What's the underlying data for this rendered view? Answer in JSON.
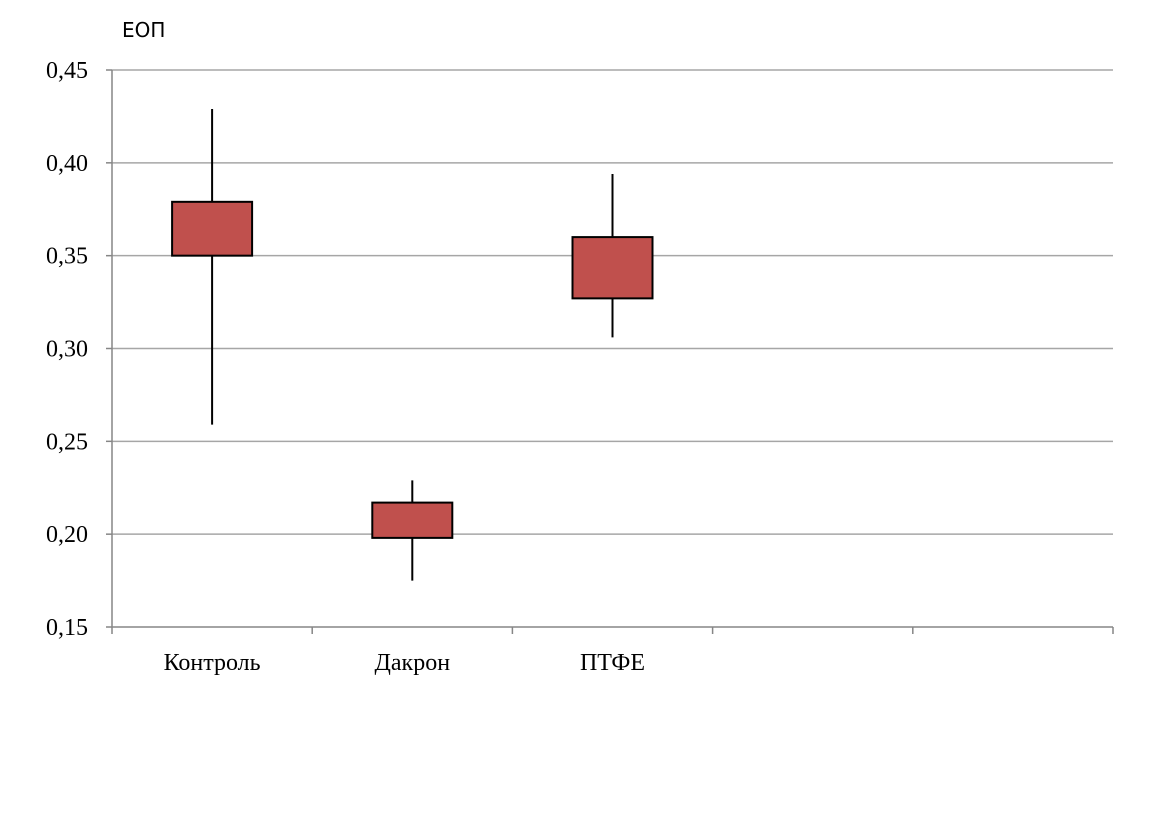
{
  "chart_data": {
    "type": "candlestick",
    "ylabel": "ЕОП",
    "xlabel": "",
    "ylim": [
      0.15,
      0.45
    ],
    "yticks": [
      "0,15",
      "0,20",
      "0,25",
      "0,30",
      "0,35",
      "0,40",
      "0,45"
    ],
    "ytick_values": [
      0.15,
      0.2,
      0.25,
      0.3,
      0.35,
      0.4,
      0.45
    ],
    "grid": true,
    "categories": [
      "Контроль",
      "Дакрон",
      "ПТФЕ",
      "",
      ""
    ],
    "boxes": [
      {
        "category": "Контроль",
        "low": 0.259,
        "box_low": 0.35,
        "box_high": 0.379,
        "high": 0.429
      },
      {
        "category": "Дакрон",
        "low": 0.175,
        "box_low": 0.198,
        "box_high": 0.217,
        "high": 0.229
      },
      {
        "category": "ПТФЕ",
        "low": 0.306,
        "box_low": 0.327,
        "box_high": 0.36,
        "high": 0.394
      }
    ],
    "colors": {
      "box_fill": "#c0504d",
      "box_stroke": "#000000",
      "grid": "#a6a6a6",
      "axis": "#868686"
    }
  }
}
